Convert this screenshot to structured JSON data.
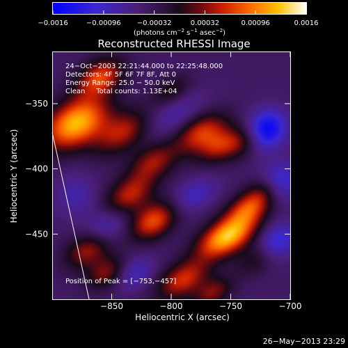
{
  "chart_data": {
    "type": "heatmap",
    "title": "Reconstructed RHESSI Image",
    "xlabel": "Heliocentric X (arcsec)",
    "ylabel": "Heliocentric Y (arcsec)",
    "xlim": [
      -900,
      -700
    ],
    "ylim": [
      -500,
      -310
    ],
    "xticks": [
      {
        "value": -850,
        "label": "−850"
      },
      {
        "value": -800,
        "label": "−800"
      },
      {
        "value": -750,
        "label": "−750"
      },
      {
        "value": -700,
        "label": "−700"
      }
    ],
    "yticks": [
      {
        "value": -350,
        "label": "−350"
      },
      {
        "value": -400,
        "label": "−400"
      },
      {
        "value": -450,
        "label": "−450"
      }
    ],
    "colorbar": {
      "min": -0.0016,
      "max": 0.0016,
      "ticks": [
        {
          "value": -0.0016,
          "label": "−0.0016"
        },
        {
          "value": -0.00096,
          "label": "−0.00096"
        },
        {
          "value": -0.00032,
          "label": "−0.00032"
        },
        {
          "value": 0.00032,
          "label": "0.00032"
        },
        {
          "value": 0.00096,
          "label": "0.00096"
        },
        {
          "value": 0.0016,
          "label": "0.0016"
        }
      ],
      "unit_label": "(photons cm",
      "unit_exp1": "−2",
      "unit_mid": " s",
      "unit_exp2": "−1",
      "unit_mid2": " asec",
      "unit_exp3": "−2",
      "unit_end": ")"
    },
    "info_lines": [
      "24−Oct−2003 22:21:44.000 to 22:25:48.000",
      "Detectors: 4F 5F 6F 7F 8F, Att 0",
      "Energy Range: 25.0 − 50.0 keV",
      "Clean     Total counts: 1.13E+04"
    ],
    "peak_label": "Position of Peak = [−753,−457]",
    "peak": {
      "x": -753,
      "y": -457
    },
    "limb": [
      {
        "x": -900,
        "y": -372
      },
      {
        "x": -869,
        "y": -500
      }
    ],
    "blobs": [
      {
        "x": -880,
        "y": -365,
        "sx": 20,
        "sy": 12,
        "a": 0.00165
      },
      {
        "x": -860,
        "y": -330,
        "sx": 14,
        "sy": 9,
        "a": 0.0011
      },
      {
        "x": -840,
        "y": -372,
        "sx": 18,
        "sy": 10,
        "a": 0.0009
      },
      {
        "x": -815,
        "y": -395,
        "sx": 15,
        "sy": 9,
        "a": 0.0008
      },
      {
        "x": -775,
        "y": -372,
        "sx": 16,
        "sy": 9,
        "a": 0.001
      },
      {
        "x": -760,
        "y": -382,
        "sx": 14,
        "sy": 8,
        "a": 0.00075
      },
      {
        "x": -740,
        "y": -380,
        "sx": 14,
        "sy": 8,
        "a": 0.00055
      },
      {
        "x": -800,
        "y": -340,
        "sx": 12,
        "sy": 7,
        "a": 0.0005
      },
      {
        "x": -835,
        "y": -420,
        "sx": 15,
        "sy": 9,
        "a": 0.0009
      },
      {
        "x": -815,
        "y": -440,
        "sx": 14,
        "sy": 9,
        "a": 0.00115
      },
      {
        "x": -753,
        "y": -452,
        "sx": 18,
        "sy": 9,
        "a": 0.0017
      },
      {
        "x": -735,
        "y": -430,
        "sx": 14,
        "sy": 8,
        "a": 0.001
      },
      {
        "x": -720,
        "y": -415,
        "sx": 12,
        "sy": 8,
        "a": 0.0006
      },
      {
        "x": -870,
        "y": -462,
        "sx": 14,
        "sy": 9,
        "a": 0.00085
      },
      {
        "x": -855,
        "y": -480,
        "sx": 12,
        "sy": 8,
        "a": 0.0007
      },
      {
        "x": -790,
        "y": -485,
        "sx": 16,
        "sy": 9,
        "a": 0.001
      },
      {
        "x": -765,
        "y": -495,
        "sx": 12,
        "sy": 7,
        "a": 0.0007
      },
      {
        "x": -730,
        "y": -470,
        "sx": 12,
        "sy": 8,
        "a": 0.0004
      },
      {
        "x": -800,
        "y": -360,
        "sx": 22,
        "sy": 10,
        "a": -0.0004
      },
      {
        "x": -720,
        "y": -370,
        "sx": 12,
        "sy": 10,
        "a": -0.0012
      },
      {
        "x": -710,
        "y": -410,
        "sx": 12,
        "sy": 10,
        "a": -0.0009
      },
      {
        "x": -780,
        "y": -420,
        "sx": 14,
        "sy": 8,
        "a": -0.0005
      },
      {
        "x": -855,
        "y": -445,
        "sx": 14,
        "sy": 9,
        "a": -0.0005
      },
      {
        "x": -710,
        "y": -455,
        "sx": 12,
        "sy": 9,
        "a": -0.0007
      },
      {
        "x": -880,
        "y": -420,
        "sx": 12,
        "sy": 12,
        "a": -0.0004
      },
      {
        "x": -830,
        "y": -480,
        "sx": 12,
        "sy": 8,
        "a": -0.0005
      }
    ]
  },
  "timestamp": "26−May−2013 23:29"
}
